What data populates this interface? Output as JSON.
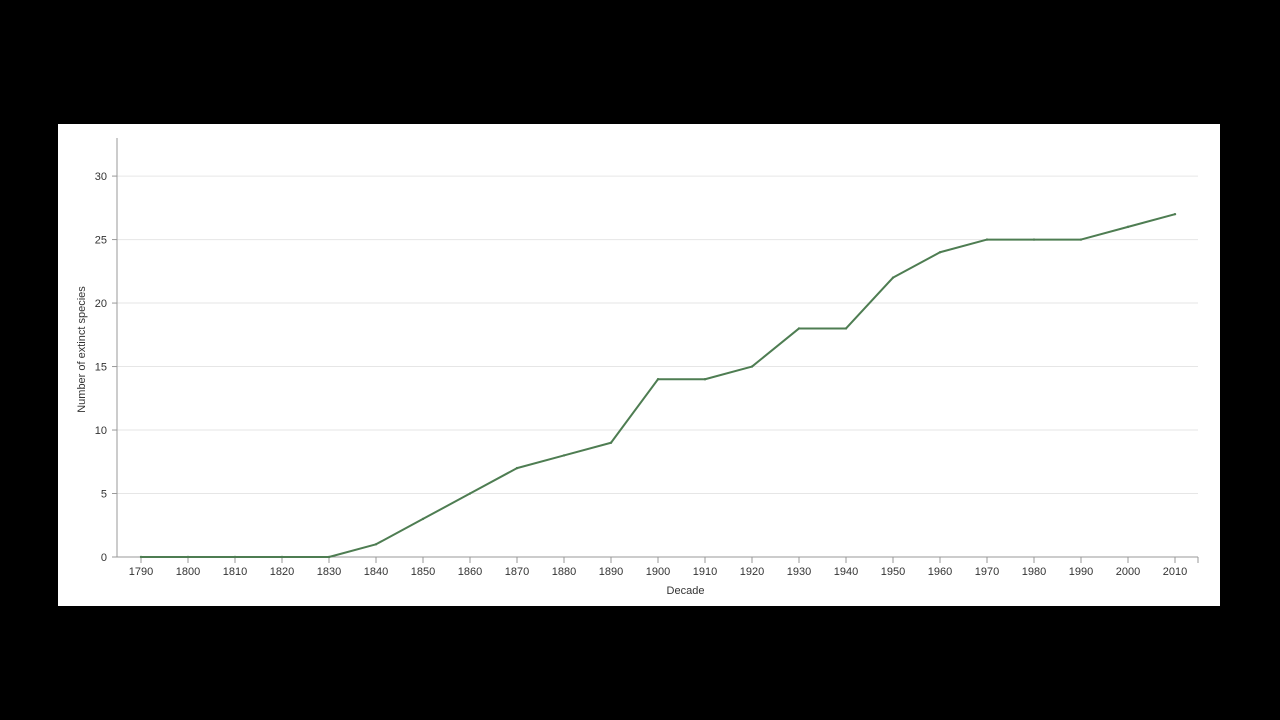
{
  "colors": {
    "background": "#000000",
    "panel": "#ffffff",
    "line": "#4e7d52",
    "grid": "#e6e6e6",
    "axis": "#999999"
  },
  "chart_data": {
    "type": "line",
    "title": "",
    "xlabel": "Decade",
    "ylabel": "Number of extinct species",
    "x": [
      "1790",
      "1800",
      "1810",
      "1820",
      "1830",
      "1840",
      "1850",
      "1860",
      "1870",
      "1880",
      "1890",
      "1900",
      "1910",
      "1920",
      "1930",
      "1940",
      "1950",
      "1960",
      "1970",
      "1980",
      "1990",
      "2000",
      "2010"
    ],
    "series": [
      {
        "values": [
          0,
          0,
          0,
          0,
          0,
          1,
          3,
          5,
          7,
          8,
          9,
          14,
          14,
          15,
          18,
          18,
          22,
          24,
          25,
          25,
          25,
          26,
          27
        ]
      }
    ],
    "ylim": [
      0,
      33
    ],
    "yticks": [
      0,
      5,
      10,
      15,
      20,
      25,
      30
    ],
    "grid": true,
    "legend": "none"
  }
}
